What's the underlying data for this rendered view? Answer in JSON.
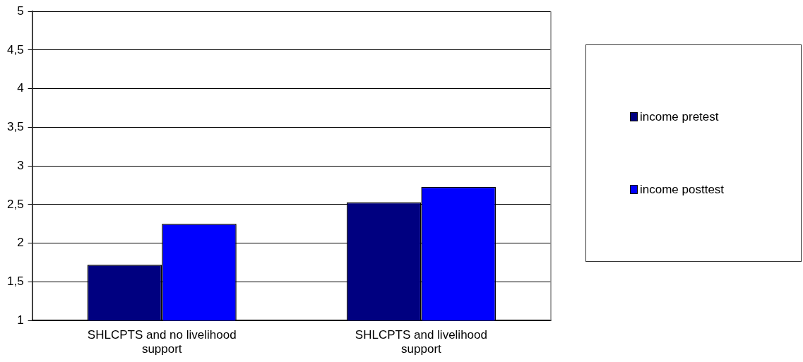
{
  "chart_data": {
    "type": "bar",
    "categories": [
      "SHLCPTS and no livelihood support",
      "SHLCPTS and livelihood support"
    ],
    "series": [
      {
        "name": "income pretest",
        "color": "#000080",
        "values": [
          1.72,
          2.53
        ]
      },
      {
        "name": "income posttest",
        "color": "#0000ff",
        "values": [
          2.25,
          2.73
        ]
      }
    ],
    "ylim": [
      1,
      5
    ],
    "yticks": [
      1,
      {
        "value": 1.5,
        "label": "1,5"
      },
      2,
      {
        "value": 2.5,
        "label": "2,5"
      },
      3,
      {
        "value": 3.5,
        "label": "3,5"
      },
      4,
      {
        "value": 4.5,
        "label": "4,5"
      },
      5
    ],
    "grid": "y",
    "legend": "right"
  }
}
